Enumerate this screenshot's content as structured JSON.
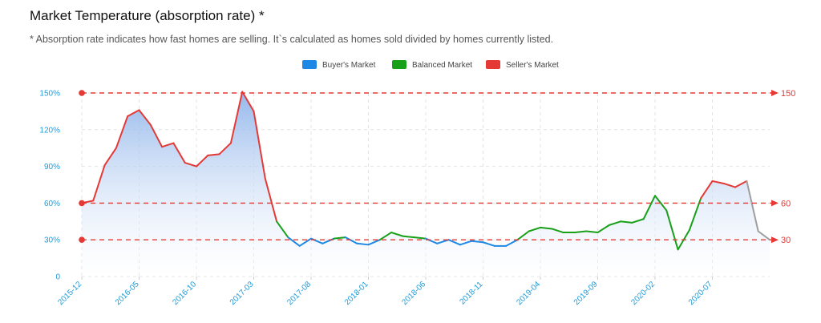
{
  "title": "Market Temperature (absorption rate) *",
  "subtitle": "* Absorption rate indicates how fast homes are selling. It`s calculated as homes sold divided by homes currently listed.",
  "colors": {
    "buyer": "#1e88e5",
    "balanced": "#19a019",
    "seller": "#e53935",
    "tick": "#1e9ad6",
    "area_top": "#8fb4ea",
    "area_bottom": "#ffffff",
    "tail": "#9e9e9e"
  },
  "chart_data": {
    "type": "line",
    "title": "Market Temperature (absorption rate) *",
    "ylim": [
      0,
      150
    ],
    "yticks": [
      0,
      30,
      60,
      90,
      120,
      150
    ],
    "ytick_labels": [
      "0",
      "30%",
      "60%",
      "90%",
      "120%",
      "150%"
    ],
    "xtick_labels": [
      "2015-12",
      "2016-05",
      "2016-10",
      "2017-03",
      "2017-08",
      "2018-01",
      "2018-06",
      "2018-11",
      "2019-04",
      "2019-09",
      "2020-02",
      "2020-07"
    ],
    "legend": [
      {
        "name": "Buyer's Market",
        "color": "#1e88e5"
      },
      {
        "name": "Balanced Market",
        "color": "#19a019"
      },
      {
        "name": "Seller's Market",
        "color": "#e53935"
      }
    ],
    "legend_position": "top-center",
    "grid": true,
    "thresholds": [
      {
        "value": 150,
        "label": "150"
      },
      {
        "value": 60,
        "label": "60"
      },
      {
        "value": 30,
        "label": "30"
      }
    ],
    "x": [
      "2015-12",
      "2016-01",
      "2016-02",
      "2016-03",
      "2016-04",
      "2016-05",
      "2016-06",
      "2016-07",
      "2016-08",
      "2016-09",
      "2016-10",
      "2016-11",
      "2016-12",
      "2017-01",
      "2017-02",
      "2017-03",
      "2017-04",
      "2017-05",
      "2017-06",
      "2017-07",
      "2017-08",
      "2017-09",
      "2017-10",
      "2017-11",
      "2017-12",
      "2018-01",
      "2018-02",
      "2018-03",
      "2018-04",
      "2018-05",
      "2018-06",
      "2018-07",
      "2018-08",
      "2018-09",
      "2018-10",
      "2018-11",
      "2018-12",
      "2019-01",
      "2019-02",
      "2019-03",
      "2019-04",
      "2019-05",
      "2019-06",
      "2019-07",
      "2019-08",
      "2019-09",
      "2019-10",
      "2019-11",
      "2019-12",
      "2020-01",
      "2020-02",
      "2020-03",
      "2020-04",
      "2020-05",
      "2020-06",
      "2020-07",
      "2020-08",
      "2020-09",
      "2020-10",
      "2020-11",
      "2020-12"
    ],
    "values": [
      60,
      62,
      91,
      105,
      131,
      136,
      124,
      106,
      109,
      93,
      90,
      99,
      100,
      109,
      151,
      135,
      80,
      45,
      32,
      25,
      31,
      27,
      31,
      32,
      27,
      26,
      30,
      36,
      33,
      32,
      31,
      27,
      30,
      26,
      29,
      28,
      25,
      25,
      30,
      37,
      40,
      39,
      36,
      36,
      37,
      36,
      42,
      45,
      44,
      47,
      66,
      54,
      22,
      38,
      64,
      78,
      76,
      73,
      78,
      37,
      30
    ]
  }
}
